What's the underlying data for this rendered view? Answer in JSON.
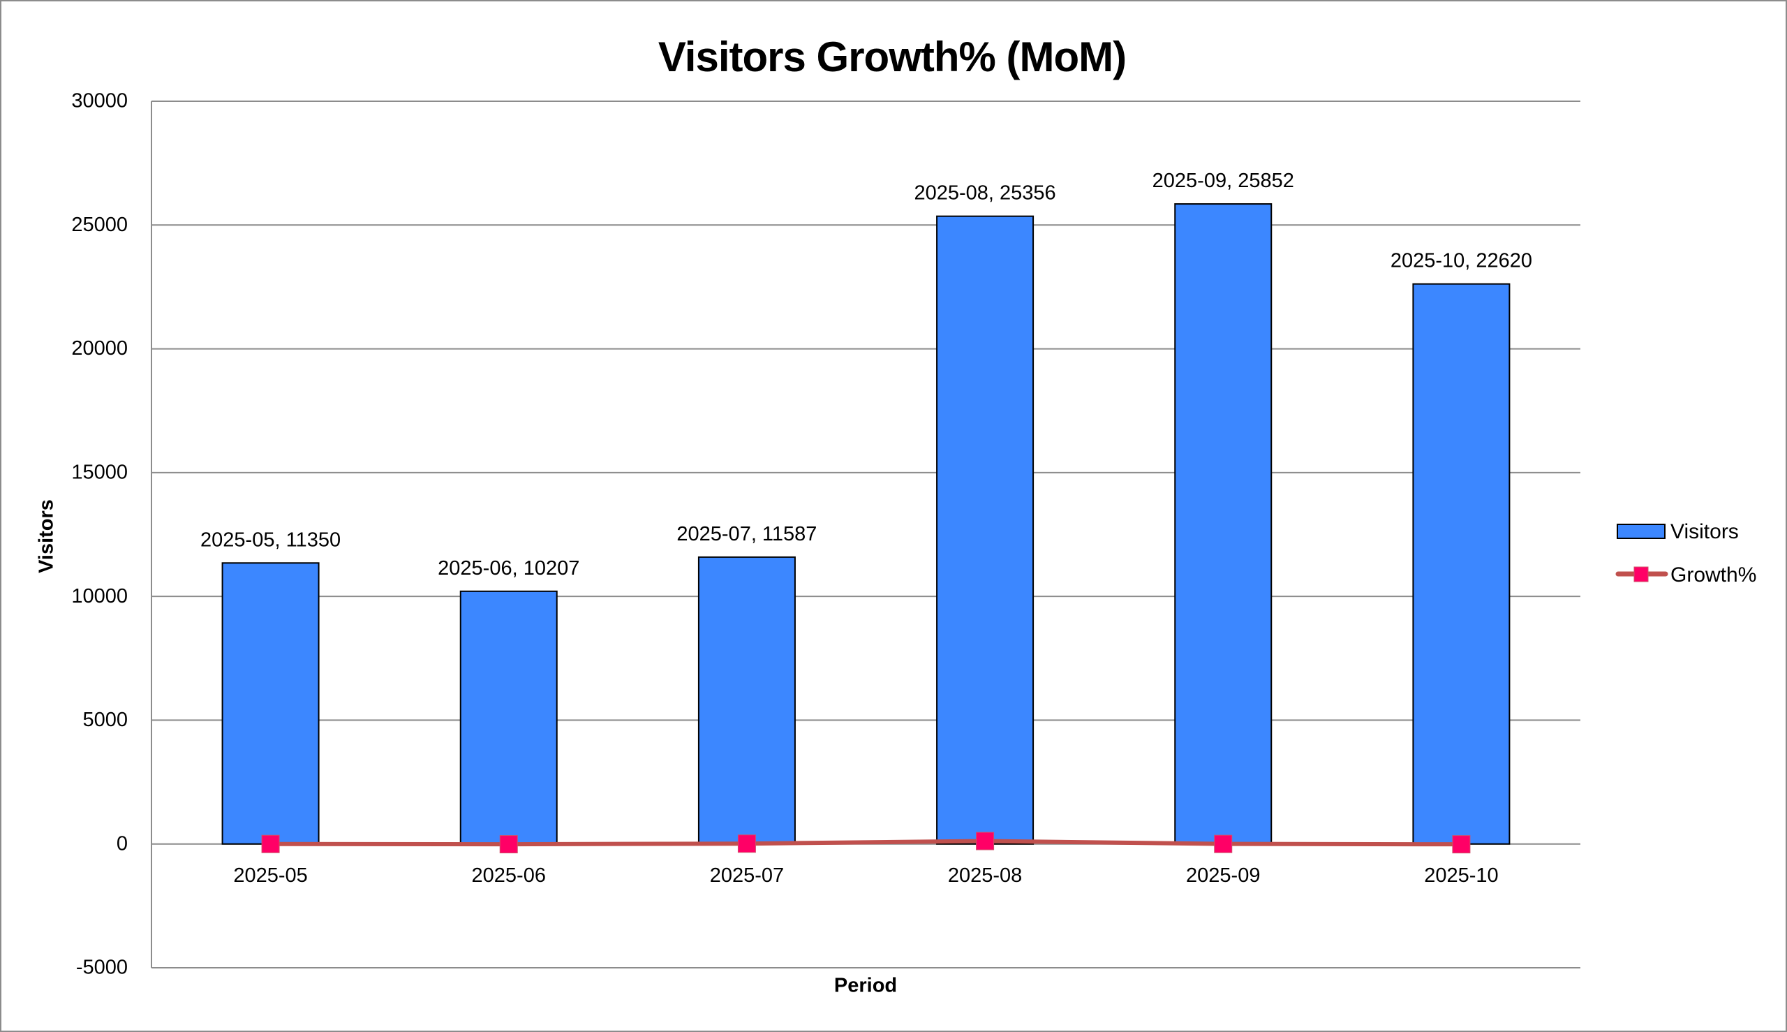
{
  "chart_data": {
    "type": "bar",
    "title": "Visitors Growth% (MoM)",
    "xlabel": "Period",
    "ylabel": "Visitors",
    "ylim": [
      -5000,
      30000
    ],
    "yticks": [
      30000,
      25000,
      20000,
      15000,
      10000,
      5000,
      0,
      -5000
    ],
    "grid": true,
    "legend_position": "right",
    "categories": [
      "2025-05",
      "2025-06",
      "2025-07",
      "2025-08",
      "2025-09",
      "2025-10"
    ],
    "series": [
      {
        "name": "Visitors",
        "type": "bar",
        "color": "#3c87ff",
        "values": [
          11350,
          10207,
          11587,
          25356,
          25852,
          22620
        ],
        "data_labels": [
          "2025-05, 11350",
          "2025-06, 10207",
          "2025-07, 11587",
          "2025-08, 25356",
          "2025-09, 25852",
          "2025-10, 22620"
        ]
      },
      {
        "name": "Growth%",
        "type": "line",
        "color": "#c0504d",
        "marker_color": "#ff0066",
        "marker": "square",
        "values": [
          0,
          -10.07,
          13.52,
          118.83,
          1.96,
          -12.5
        ]
      }
    ]
  },
  "legend": {
    "items": [
      {
        "label": "Visitors",
        "icon": "bar-swatch-icon"
      },
      {
        "label": "Growth%",
        "icon": "line-marker-swatch-icon"
      }
    ]
  }
}
